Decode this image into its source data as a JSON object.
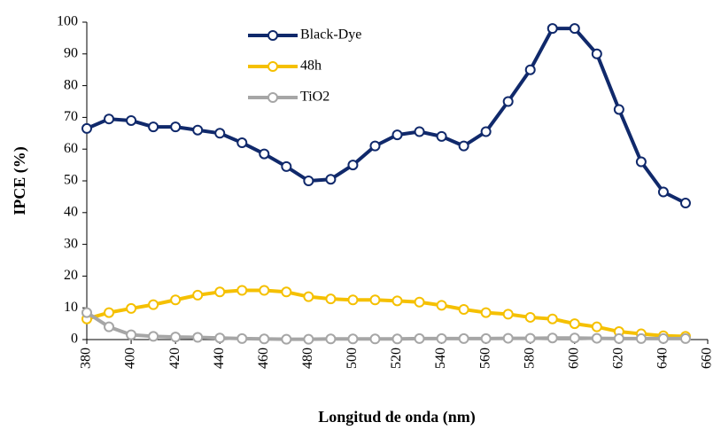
{
  "chart_data": {
    "type": "line",
    "x_label": "Longitud de onda (nm)",
    "y_label": "IPCE (%)",
    "x": [
      380,
      390,
      400,
      410,
      420,
      430,
      440,
      450,
      460,
      470,
      480,
      490,
      500,
      510,
      520,
      530,
      540,
      550,
      560,
      570,
      580,
      590,
      600,
      610,
      620,
      630,
      640,
      650
    ],
    "series": [
      {
        "name": "Black-Dye",
        "color": "#10296b",
        "values": [
          66.5,
          69.5,
          69,
          67,
          67,
          66,
          65,
          62,
          58.5,
          54.5,
          50,
          50.5,
          55,
          61,
          64.5,
          65.5,
          64,
          61,
          65.5,
          75,
          85,
          98,
          98,
          90,
          72.5,
          56,
          46.5,
          43
        ]
      },
      {
        "name": "48h",
        "color": "#f5c000",
        "values": [
          6.5,
          8.5,
          9.8,
          11,
          12.5,
          14,
          15,
          15.5,
          15.5,
          15,
          13.5,
          12.8,
          12.5,
          12.5,
          12.2,
          11.8,
          10.8,
          9.5,
          8.5,
          8,
          7,
          6.5,
          5,
          4,
          2.5,
          1.8,
          1.2,
          1
        ]
      },
      {
        "name": "TiO2",
        "color": "#a6a6a6",
        "values": [
          8.5,
          4,
          1.5,
          1,
          0.8,
          0.7,
          0.5,
          0.3,
          0.2,
          0.1,
          0.1,
          0.2,
          0.2,
          0.2,
          0.2,
          0.3,
          0.3,
          0.3,
          0.3,
          0.4,
          0.4,
          0.5,
          0.5,
          0.4,
          0.3,
          0.3,
          0.3,
          0.3
        ]
      }
    ],
    "xlim": [
      380,
      660
    ],
    "xticks": [
      380,
      400,
      420,
      440,
      460,
      480,
      500,
      520,
      540,
      560,
      580,
      600,
      620,
      640,
      660
    ],
    "ylim": [
      0,
      100
    ],
    "yticks": [
      0,
      10,
      20,
      30,
      40,
      50,
      60,
      70,
      80,
      90,
      100
    ],
    "grid": false,
    "legend": "top"
  }
}
